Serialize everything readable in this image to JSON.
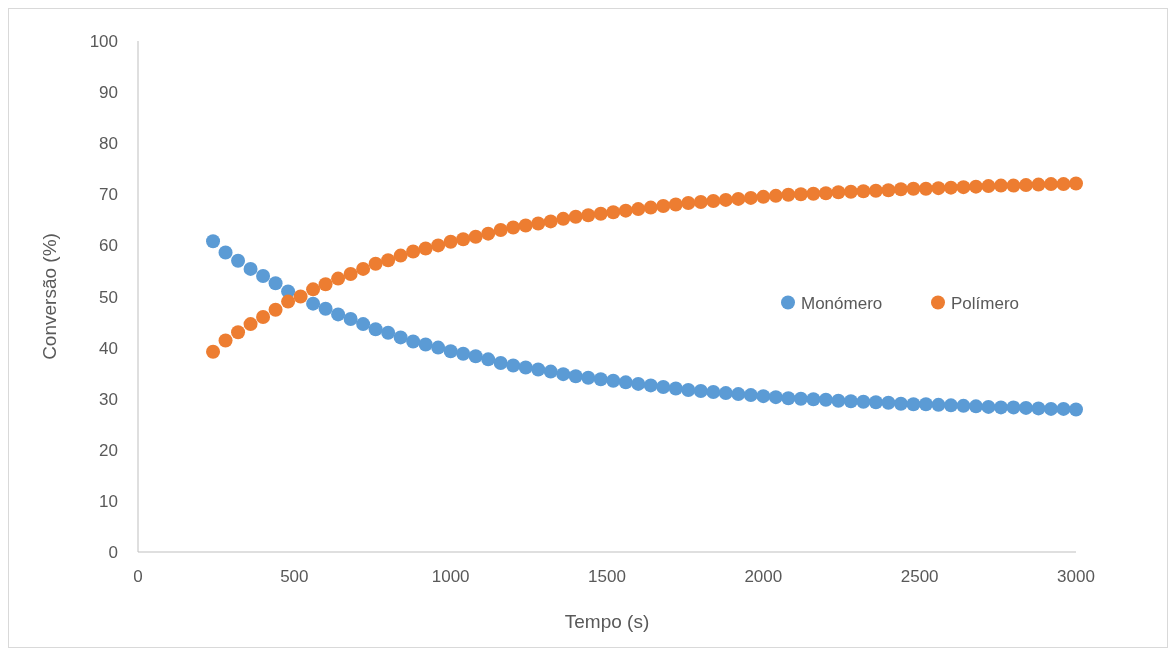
{
  "chart_data": {
    "type": "scatter",
    "xlabel": "Tempo (s)",
    "ylabel": "Conversão (%)",
    "xlim": [
      0,
      3000
    ],
    "ylim": [
      0,
      100
    ],
    "xticks": [
      0,
      500,
      1000,
      1500,
      2000,
      2500,
      3000
    ],
    "yticks": [
      0,
      10,
      20,
      30,
      40,
      50,
      60,
      70,
      80,
      90,
      100
    ],
    "marker": "circle",
    "legend": "right",
    "x": [
      240,
      280,
      320,
      360,
      400,
      440,
      480,
      520,
      560,
      600,
      640,
      680,
      720,
      760,
      800,
      840,
      880,
      920,
      960,
      1000,
      1040,
      1080,
      1120,
      1160,
      1200,
      1240,
      1280,
      1320,
      1360,
      1400,
      1440,
      1480,
      1520,
      1560,
      1600,
      1640,
      1680,
      1720,
      1760,
      1800,
      1840,
      1880,
      1920,
      1960,
      2000,
      2040,
      2080,
      2120,
      2160,
      2200,
      2240,
      2280,
      2320,
      2360,
      2400,
      2440,
      2480,
      2520,
      2560,
      2600,
      2640,
      2680,
      2720,
      2760,
      2800,
      2840,
      2880,
      2920,
      2960,
      3000
    ],
    "series": [
      {
        "name": "Monómero",
        "color": "#5b9bd5",
        "values": [
          60.8,
          58.6,
          57.0,
          55.4,
          54.0,
          52.6,
          51.0,
          null,
          48.6,
          47.6,
          46.5,
          45.6,
          44.6,
          43.6,
          42.9,
          42.0,
          41.2,
          40.6,
          40.0,
          39.3,
          38.8,
          38.3,
          37.7,
          37.0,
          36.5,
          36.1,
          35.7,
          35.3,
          34.8,
          34.4,
          34.1,
          33.8,
          33.5,
          33.2,
          32.9,
          32.6,
          32.3,
          32.0,
          31.7,
          31.5,
          31.3,
          31.1,
          30.9,
          30.7,
          30.5,
          30.3,
          30.1,
          30.0,
          29.9,
          29.8,
          29.6,
          29.5,
          29.4,
          29.3,
          29.2,
          29.0,
          28.9,
          28.9,
          28.8,
          28.7,
          28.6,
          28.5,
          28.4,
          28.3,
          28.3,
          28.2,
          28.1,
          28.0,
          28.0,
          27.9
        ]
      },
      {
        "name": "Polímero",
        "color": "#ed7d31",
        "values": [
          39.2,
          41.4,
          43.0,
          44.6,
          46.0,
          47.4,
          49.0,
          50.0,
          51.4,
          52.4,
          53.5,
          54.4,
          55.4,
          56.4,
          57.1,
          58.0,
          58.8,
          59.4,
          60.0,
          60.7,
          61.2,
          61.7,
          62.3,
          63.0,
          63.5,
          63.9,
          64.3,
          64.7,
          65.2,
          65.6,
          65.9,
          66.2,
          66.5,
          66.8,
          67.1,
          67.4,
          67.7,
          68.0,
          68.3,
          68.5,
          68.7,
          68.9,
          69.1,
          69.3,
          69.5,
          69.7,
          69.9,
          70.0,
          70.1,
          70.2,
          70.4,
          70.5,
          70.6,
          70.7,
          70.8,
          71.0,
          71.1,
          71.1,
          71.2,
          71.3,
          71.4,
          71.5,
          71.6,
          71.7,
          71.7,
          71.8,
          71.9,
          72.0,
          72.0,
          72.1
        ]
      }
    ]
  }
}
